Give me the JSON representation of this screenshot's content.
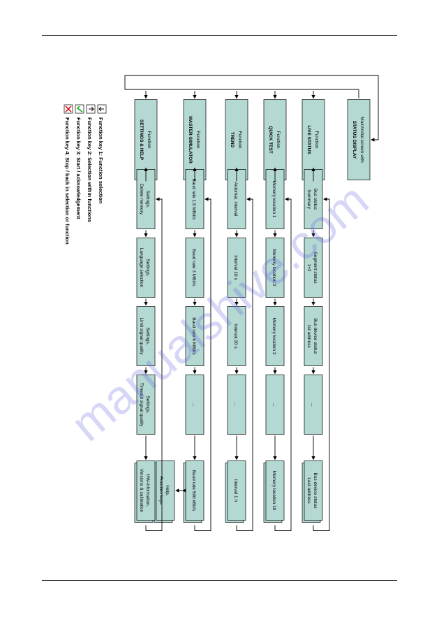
{
  "watermark": "manualshive.com",
  "diagram": {
    "background": "#ffffff",
    "node_fill": "#b4d9d3",
    "node_stroke": "#000000",
    "arrow_color": "#000000",
    "columns": [
      {
        "header": {
          "line1": "Main/initial screen with",
          "line2": "STATUS DISPLAY",
          "bold2": true
        },
        "items": []
      },
      {
        "header": {
          "line1": "Function",
          "line2": "LIVE STATUS",
          "bold2": true
        },
        "items": [
          {
            "line1": "Bus status",
            "line2": "Summary"
          },
          {
            "line1": "Segment status",
            "line2": "1+2"
          },
          {
            "line1": "Bus device status",
            "line2": "1st address"
          },
          {
            "ellipsis": true
          },
          {
            "line1": "Bus device status",
            "line2": "Last address",
            "stack": true
          }
        ]
      },
      {
        "header": {
          "line1": "Function",
          "line2": "QUICK TEST",
          "bold2": true
        },
        "items": [
          {
            "line1": "Memory location 1"
          },
          {
            "line1": "Memory location 2"
          },
          {
            "line1": "Memory location 3"
          },
          {
            "ellipsis": true
          },
          {
            "line1": "Memory location 10",
            "stack": true
          }
        ]
      },
      {
        "header": {
          "line1": "Function",
          "line2": "TREND",
          "bold2": true
        },
        "items": [
          {
            "line1": "Automat. interval"
          },
          {
            "line1": "Interval 10 s"
          },
          {
            "line1": "Interval 20 s"
          },
          {
            "ellipsis": true
          },
          {
            "line1": "Interval 1 h",
            "stack": true
          }
        ]
      },
      {
        "header": {
          "line1": "Function",
          "line2": "MASTER-SIMULATOR",
          "bold2": true
        },
        "items": [
          {
            "line1": "Baud rate 1,5 MBit/s"
          },
          {
            "line1": "Baud rate 3 MBit/s"
          },
          {
            "line1": "Baud rate 6 MBit/s"
          },
          {
            "ellipsis": true
          },
          {
            "line1": "Baud rate 500 kBit/s",
            "stack": true
          }
        ],
        "extra": {
          "line1": "Help,",
          "line2": "Function keys",
          "stack": true
        }
      },
      {
        "header": {
          "line1": "Function",
          "line2": "SETTINGS & HELP",
          "bold2": true
        },
        "items": [
          {
            "line1": "Settings,",
            "line2": "Delete memory"
          },
          {
            "line1": "Settings,",
            "line2": "Language selection"
          },
          {
            "line1": "Settings,",
            "line2": "Limit signal quality"
          },
          {
            "line1": "Settings,",
            "line2": "Timeout signal quality"
          },
          {
            "line1": "HW-information,",
            "line2": "Versions & calibration",
            "stack": true
          }
        ]
      }
    ],
    "legend": [
      {
        "icon": "down",
        "label": "Function key 1: Function selection"
      },
      {
        "icon": "up",
        "label": "Function key 2: Selection within functions"
      },
      {
        "icon": "check",
        "label": "Function key 3: Start / acknowledgement"
      },
      {
        "icon": "x",
        "label": "Function key 4: Stop / back in selection or function"
      }
    ]
  }
}
